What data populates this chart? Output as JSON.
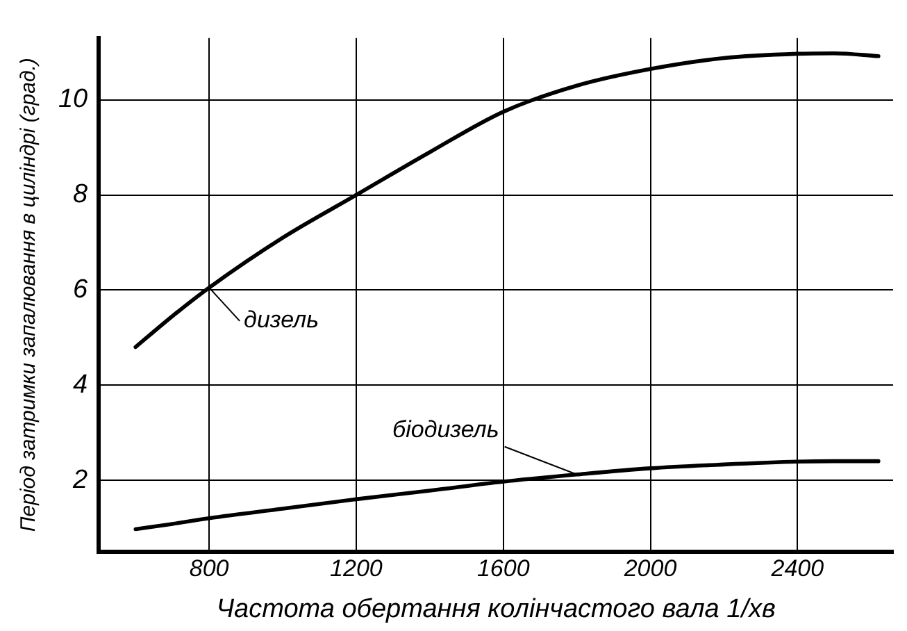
{
  "chart_data": {
    "type": "line",
    "xlabel": "Частота обертання колінчастого вала 1/хв",
    "ylabel": "Період затримки запалювання в циліндрі (град.)",
    "x": [
      600,
      700,
      800,
      1000,
      1200,
      1400,
      1600,
      1800,
      2000,
      2200,
      2400,
      2500,
      2620
    ],
    "series": [
      {
        "name": "дизель",
        "color": "#000000",
        "values": [
          4.8,
          5.45,
          6.05,
          7.1,
          8.0,
          8.9,
          9.75,
          10.3,
          10.65,
          10.88,
          10.97,
          10.98,
          10.92
        ]
      },
      {
        "name": "біодизель",
        "color": "#000000",
        "values": [
          0.97,
          1.08,
          1.2,
          1.4,
          1.6,
          1.78,
          1.97,
          2.12,
          2.25,
          2.33,
          2.39,
          2.4,
          2.4
        ]
      }
    ],
    "xlim": [
      500,
      2660
    ],
    "ylim": [
      0.5,
      11.3
    ],
    "xticks": [
      800,
      1200,
      1600,
      2000,
      2400
    ],
    "yticks": [
      2,
      4,
      6,
      8,
      10
    ],
    "grid": true,
    "marker": "none",
    "line_style": "solid"
  }
}
